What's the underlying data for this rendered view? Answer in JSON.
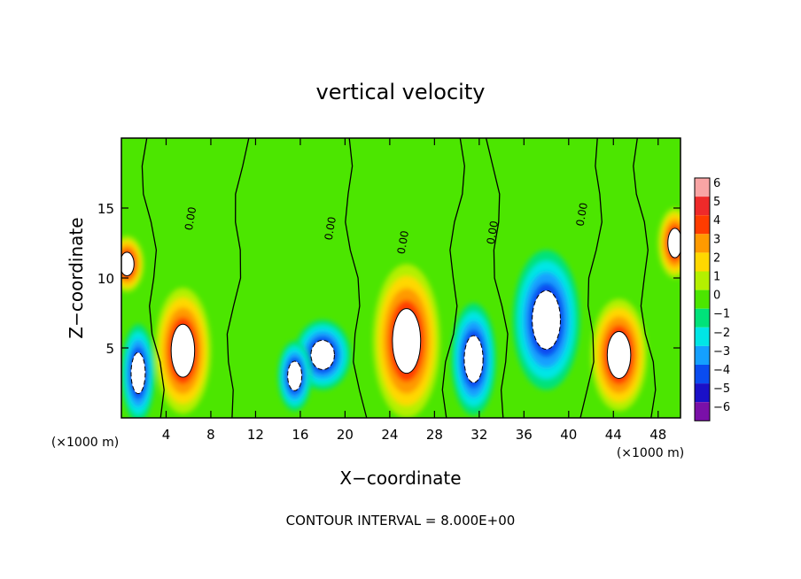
{
  "chart_data": {
    "type": "heatmap",
    "title": "vertical velocity",
    "xlabel": "X−coordinate",
    "ylabel": "Z−coordinate",
    "x_unit_label": "(×1000 m)",
    "y_unit_label": "(×1000 m)",
    "xlim": [
      0,
      50
    ],
    "ylim": [
      0,
      20
    ],
    "x_ticks": [
      4,
      8,
      12,
      16,
      20,
      24,
      28,
      32,
      36,
      40,
      44,
      48
    ],
    "y_ticks": [
      5,
      10,
      15
    ],
    "colorbar": {
      "levels": [
        6,
        5,
        4,
        3,
        2,
        1,
        0,
        "−1",
        "−2",
        "−3",
        "−4",
        "−5",
        "−6"
      ],
      "colors": [
        "#f8a4a4",
        "#ee2a2a",
        "#ff3c00",
        "#ff9a00",
        "#ffd800",
        "#b4f000",
        "#4ce600",
        "#00e27a",
        "#00e6e6",
        "#14a0ff",
        "#0a4cf0",
        "#1a10c8",
        "#7a10a8"
      ]
    },
    "zero_contour_label": "0.00",
    "annotation": "CONTOUR INTERVAL = 8.000E+00",
    "features": [
      {
        "kind": "updraft",
        "x": 5.5,
        "z": 4.8,
        "extent_x": 5,
        "extent_z": 9
      },
      {
        "kind": "updraft",
        "x": 25.5,
        "z": 5.5,
        "extent_x": 6,
        "extent_z": 11
      },
      {
        "kind": "updraft",
        "x": 44.5,
        "z": 4.5,
        "extent_x": 5,
        "extent_z": 8
      },
      {
        "kind": "updraft",
        "x": 0.5,
        "z": 11.0,
        "extent_x": 3,
        "extent_z": 4
      },
      {
        "kind": "updraft",
        "x": 49.5,
        "z": 12.5,
        "extent_x": 3,
        "extent_z": 5
      },
      {
        "kind": "downdraft",
        "x": 1.5,
        "z": 3.2,
        "extent_x": 3,
        "extent_z": 7
      },
      {
        "kind": "downdraft",
        "x": 18.0,
        "z": 4.5,
        "extent_x": 5,
        "extent_z": 5
      },
      {
        "kind": "downdraft",
        "x": 31.5,
        "z": 4.2,
        "extent_x": 4,
        "extent_z": 8
      },
      {
        "kind": "downdraft",
        "x": 38.0,
        "z": 7.0,
        "extent_x": 6,
        "extent_z": 10
      },
      {
        "kind": "downdraft",
        "x": 15.5,
        "z": 3.0,
        "extent_x": 3,
        "extent_z": 5
      }
    ]
  }
}
